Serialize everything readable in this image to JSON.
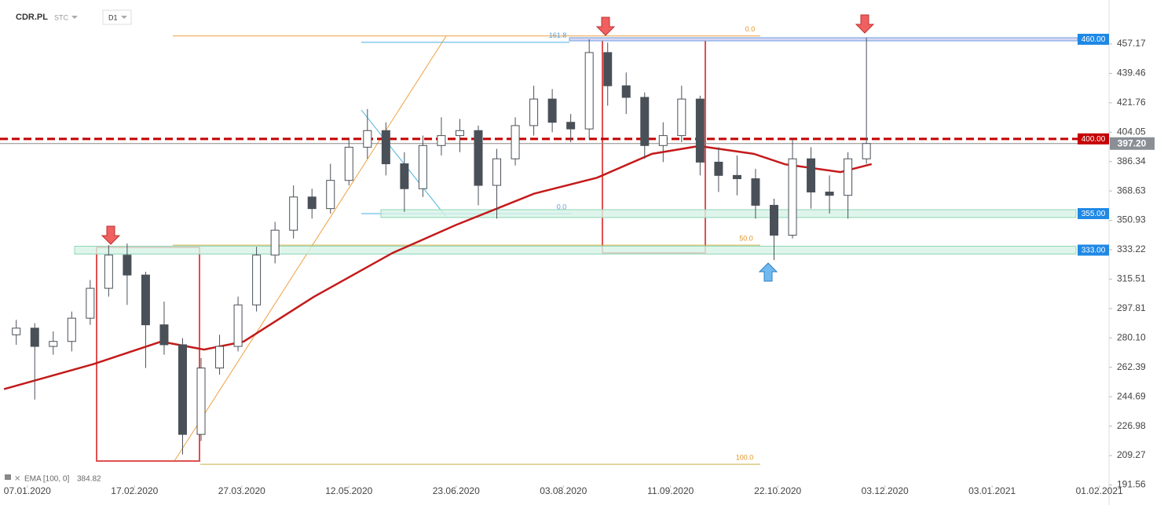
{
  "header": {
    "symbol": "CDR.PL",
    "market": "STC",
    "interval": "D1"
  },
  "chart_data": {
    "type": "candlestick",
    "x": [
      0,
      5,
      10,
      15,
      20,
      25,
      30,
      35,
      40,
      45,
      50,
      55,
      60,
      65,
      70,
      75,
      80,
      85,
      90,
      95,
      100,
      105,
      110,
      115,
      120,
      125,
      130,
      135,
      140,
      145,
      150,
      155,
      160,
      165,
      170,
      175,
      180,
      185,
      190,
      195,
      200,
      205,
      210,
      215,
      220,
      225,
      230
    ],
    "open": [
      282,
      286,
      275,
      278,
      292,
      310,
      330,
      318,
      288,
      276,
      222,
      262,
      275,
      300,
      330,
      345,
      365,
      358,
      375,
      395,
      405,
      385,
      370,
      396,
      402,
      405,
      372,
      388,
      408,
      424,
      410,
      406,
      452,
      432,
      425,
      396,
      402,
      424,
      386,
      378,
      376,
      360,
      342,
      388,
      368,
      366,
      388
    ],
    "high": [
      291,
      289,
      284,
      296,
      315,
      336,
      337,
      320,
      302,
      280,
      268,
      282,
      305,
      335,
      350,
      372,
      370,
      385,
      400,
      418,
      410,
      392,
      402,
      413,
      412,
      408,
      394,
      413,
      432,
      430,
      415,
      460,
      458,
      440,
      428,
      410,
      432,
      426,
      395,
      390,
      382,
      364,
      400,
      395,
      378,
      392,
      461
    ],
    "low": [
      276,
      243,
      270,
      272,
      288,
      305,
      300,
      262,
      270,
      210,
      218,
      258,
      272,
      296,
      325,
      340,
      352,
      355,
      372,
      388,
      378,
      356,
      365,
      390,
      392,
      360,
      352,
      384,
      402,
      404,
      398,
      400,
      420,
      415,
      388,
      386,
      398,
      378,
      368,
      366,
      352,
      327,
      340,
      358,
      355,
      352,
      385
    ],
    "close": [
      286,
      275,
      278,
      292,
      310,
      330,
      318,
      288,
      276,
      222,
      262,
      275,
      300,
      330,
      345,
      365,
      358,
      375,
      395,
      405,
      385,
      370,
      396,
      402,
      405,
      372,
      388,
      408,
      424,
      410,
      406,
      452,
      432,
      425,
      396,
      402,
      424,
      386,
      378,
      376,
      360,
      342,
      388,
      368,
      366,
      388,
      397.2
    ],
    "up_color": "#ffffff",
    "down_color": "#4a5058",
    "ema": {
      "name": "EMA [100, 0]",
      "color": "#c41a1a",
      "x": [
        -3.3,
        21.1,
        39.2,
        50.8,
        61.5,
        80.6,
        101.8,
        118.8,
        140.1,
        157.1,
        172,
        184.7,
        199.5,
        208,
        223,
        231.4
      ],
      "values": [
        249.3,
        264.5,
        277.9,
        273.1,
        277.9,
        305,
        331.3,
        348,
        367,
        376.6,
        391,
        395.7,
        391,
        384.7,
        380,
        384.82
      ],
      "last_label": "384.82"
    },
    "last_price": {
      "value": 397.2,
      "label": "397.20"
    },
    "levels": [
      {
        "value": 460,
        "label": "460.00",
        "kind": "line",
        "color": "#1e88e5"
      },
      {
        "value": 400,
        "label": "400.00",
        "kind": "dashed",
        "color": "#c40000"
      },
      {
        "value": 355,
        "label": "355.00",
        "kind": "zone",
        "color": "#1e88e5"
      },
      {
        "value": 333,
        "label": "333.00",
        "kind": "zone",
        "color": "#1e88e5"
      }
    ],
    "fib_labels": [
      {
        "text": "161.8",
        "price": 458.2,
        "color": "#5aa0d8"
      },
      {
        "text": "0.0",
        "price": 462,
        "color": "#e0952a"
      },
      {
        "text": "0.0",
        "price": 355,
        "color": "#5aa0d8"
      },
      {
        "text": "50.0",
        "price": 336,
        "color": "#e0952a"
      },
      {
        "text": "100.0",
        "price": 204,
        "color": "#e0952a"
      }
    ],
    "xlim": [
      -4.4,
      295.2
    ],
    "xticks": [
      {
        "value": 3,
        "label": "07.01.2020"
      },
      {
        "value": 32,
        "label": "17.02.2020"
      },
      {
        "value": 61,
        "label": "27.03.2020"
      },
      {
        "value": 90,
        "label": "12.05.2020"
      },
      {
        "value": 119,
        "label": "23.06.2020"
      },
      {
        "value": 148,
        "label": "03.08.2020"
      },
      {
        "value": 177,
        "label": "11.09.2020"
      },
      {
        "value": 206,
        "label": "22.10.2020"
      },
      {
        "value": 235,
        "label": "03.12.2020"
      },
      {
        "value": 264,
        "label": "03.01.2021"
      },
      {
        "value": 293,
        "label": "01.02.2021"
      }
    ],
    "ylim": [
      191.3,
      483.66
    ],
    "yticks": [
      457.17,
      439.46,
      421.76,
      404.05,
      386.34,
      368.63,
      350.93,
      333.22,
      315.51,
      297.81,
      {
        "value": 280.1,
        "label": "280.10"
      },
      262.39,
      244.69,
      226.98,
      209.27,
      191.56
    ]
  }
}
